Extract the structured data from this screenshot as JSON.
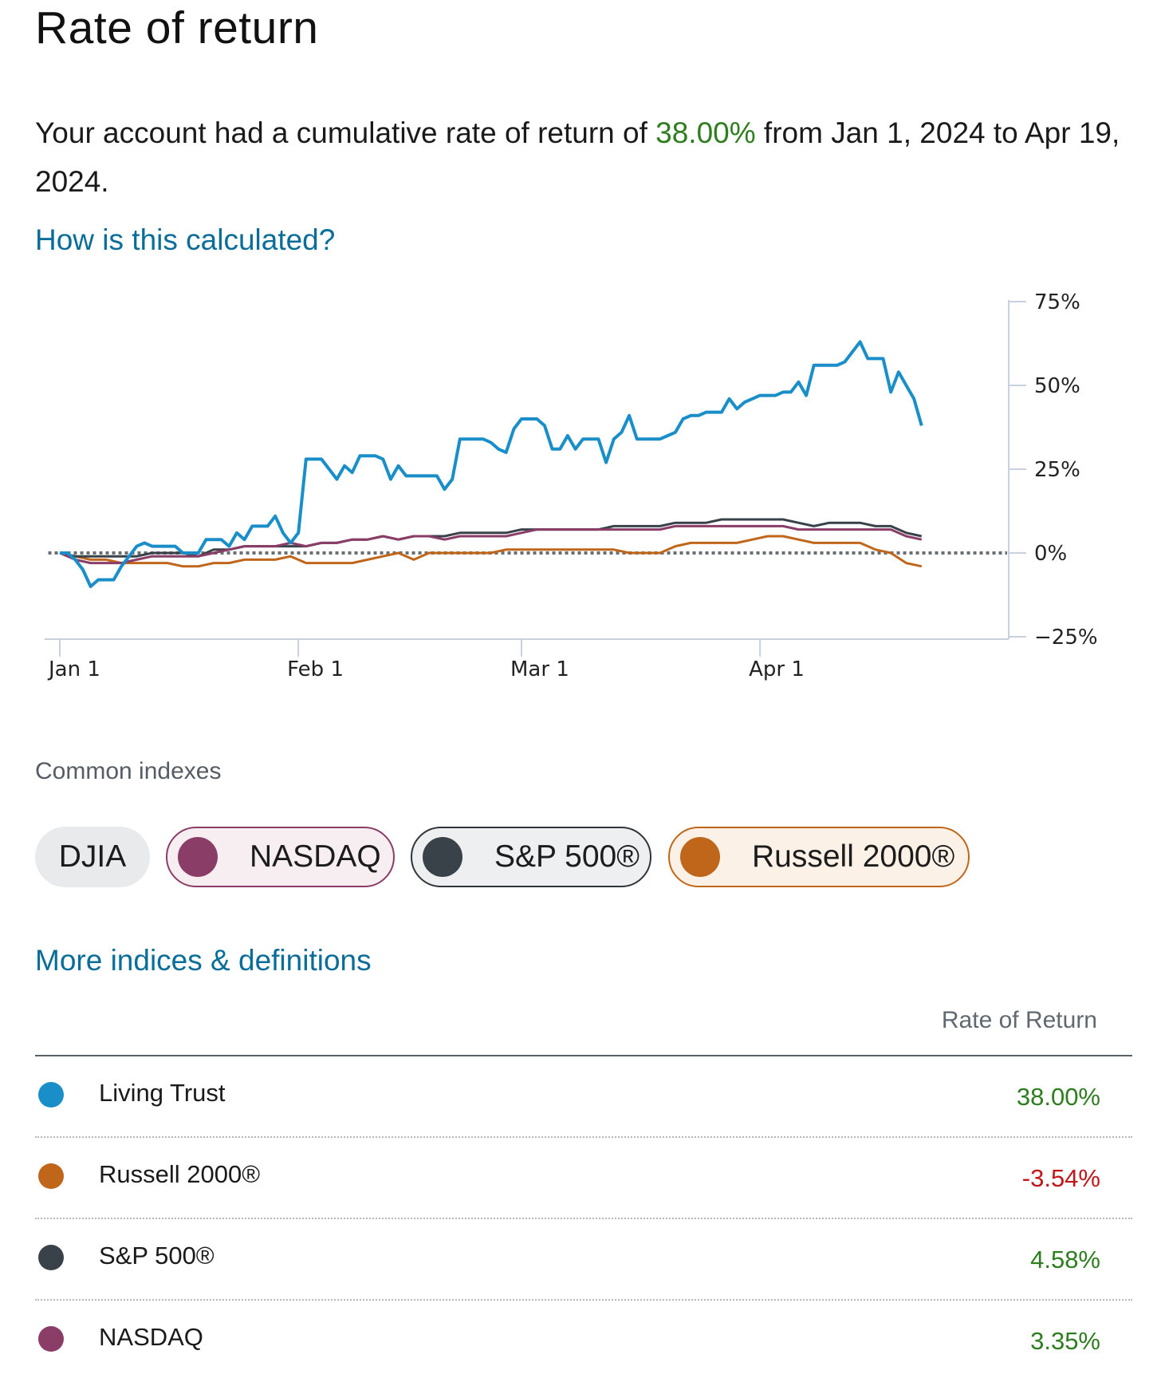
{
  "page": {
    "title": "Rate of return",
    "summary": {
      "prefix": "Your account had a cumulative rate of return of ",
      "return_value": "38.00%",
      "suffix": " from Jan 1, 2024 to Apr 19, 2024."
    },
    "calc_link": "How is this calculated?",
    "section_label": "Common indexes",
    "more_link": "More indices & definitions",
    "table_header": "Rate of Return"
  },
  "index_pills": [
    {
      "label": "DJIA",
      "color": null,
      "selected": false
    },
    {
      "label": "NASDAQ",
      "color": "#8a3d66",
      "selected": true
    },
    {
      "label": "S&P 500®",
      "color": "#3a4249",
      "selected": true
    },
    {
      "label": "Russell 2000®",
      "color": "#c0661a",
      "selected": true
    }
  ],
  "table_rows": [
    {
      "name": "Living Trust",
      "value": "38.00%",
      "color": "#1a8ec9",
      "sign": "positive"
    },
    {
      "name": "Russell 2000®",
      "value": "-3.54%",
      "color": "#c0661a",
      "sign": "negative"
    },
    {
      "name": "S&P 500®",
      "value": "4.58%",
      "color": "#3a4249",
      "sign": "positive"
    },
    {
      "name": "NASDAQ",
      "value": "3.35%",
      "color": "#8a3d66",
      "sign": "positive"
    }
  ],
  "chart_data": {
    "type": "line",
    "x_ticks": [
      {
        "label": "Jan 1",
        "day": 0
      },
      {
        "label": "Feb 1",
        "day": 31
      },
      {
        "label": "Mar 1",
        "day": 60
      },
      {
        "label": "Apr 1",
        "day": 91
      }
    ],
    "x_range_days": [
      -2,
      110
    ],
    "y_ticks": [
      {
        "label": "75%",
        "value": 75
      },
      {
        "label": "50%",
        "value": 50
      },
      {
        "label": "25%",
        "value": 25
      },
      {
        "label": "0%",
        "value": 0
      },
      {
        "label": "−25%",
        "value": -25
      }
    ],
    "ylim": [
      -25,
      75
    ],
    "zero_line": true,
    "series": [
      {
        "name": "Living Trust",
        "color": "#1a8ec9",
        "points": [
          [
            0,
            0
          ],
          [
            1,
            0
          ],
          [
            2,
            -2
          ],
          [
            3,
            -5
          ],
          [
            4,
            -10
          ],
          [
            5,
            -8
          ],
          [
            6,
            -8
          ],
          [
            7,
            -8
          ],
          [
            8,
            -4
          ],
          [
            9,
            -1
          ],
          [
            10,
            2
          ],
          [
            11,
            3
          ],
          [
            12,
            2
          ],
          [
            13,
            2
          ],
          [
            14,
            2
          ],
          [
            15,
            2
          ],
          [
            16,
            0
          ],
          [
            17,
            0
          ],
          [
            18,
            0
          ],
          [
            19,
            4
          ],
          [
            20,
            4
          ],
          [
            21,
            4
          ],
          [
            22,
            2
          ],
          [
            23,
            6
          ],
          [
            24,
            4
          ],
          [
            25,
            8
          ],
          [
            26,
            8
          ],
          [
            27,
            8
          ],
          [
            28,
            11
          ],
          [
            29,
            6
          ],
          [
            30,
            3
          ],
          [
            31,
            6
          ],
          [
            32,
            28
          ],
          [
            33,
            28
          ],
          [
            34,
            28
          ],
          [
            35,
            25
          ],
          [
            36,
            22
          ],
          [
            37,
            26
          ],
          [
            38,
            24
          ],
          [
            39,
            29
          ],
          [
            40,
            29
          ],
          [
            41,
            29
          ],
          [
            42,
            28
          ],
          [
            43,
            22
          ],
          [
            44,
            26
          ],
          [
            45,
            23
          ],
          [
            46,
            23
          ],
          [
            47,
            23
          ],
          [
            48,
            23
          ],
          [
            49,
            23
          ],
          [
            50,
            19
          ],
          [
            51,
            22
          ],
          [
            52,
            34
          ],
          [
            53,
            34
          ],
          [
            54,
            34
          ],
          [
            55,
            34
          ],
          [
            56,
            33
          ],
          [
            57,
            31
          ],
          [
            58,
            30
          ],
          [
            59,
            37
          ],
          [
            60,
            40
          ],
          [
            61,
            40
          ],
          [
            62,
            40
          ],
          [
            63,
            38
          ],
          [
            64,
            31
          ],
          [
            65,
            31
          ],
          [
            66,
            35
          ],
          [
            67,
            31
          ],
          [
            68,
            34
          ],
          [
            69,
            34
          ],
          [
            70,
            34
          ],
          [
            71,
            27
          ],
          [
            72,
            34
          ],
          [
            73,
            36
          ],
          [
            74,
            41
          ],
          [
            75,
            34
          ],
          [
            76,
            34
          ],
          [
            77,
            34
          ],
          [
            78,
            34
          ],
          [
            79,
            35
          ],
          [
            80,
            36
          ],
          [
            81,
            40
          ],
          [
            82,
            41
          ],
          [
            83,
            41
          ],
          [
            84,
            42
          ],
          [
            85,
            42
          ],
          [
            86,
            42
          ],
          [
            87,
            46
          ],
          [
            88,
            43
          ],
          [
            89,
            45
          ],
          [
            90,
            46
          ],
          [
            91,
            47
          ],
          [
            92,
            47
          ],
          [
            93,
            47
          ],
          [
            94,
            48
          ],
          [
            95,
            48
          ],
          [
            96,
            51
          ],
          [
            97,
            47
          ],
          [
            98,
            56
          ],
          [
            99,
            56
          ],
          [
            100,
            56
          ],
          [
            101,
            56
          ],
          [
            102,
            57
          ],
          [
            103,
            60
          ],
          [
            104,
            63
          ],
          [
            105,
            58
          ],
          [
            106,
            58
          ],
          [
            107,
            58
          ],
          [
            108,
            48
          ],
          [
            109,
            54
          ],
          [
            110,
            50
          ],
          [
            111,
            46
          ],
          [
            112,
            38
          ]
        ]
      },
      {
        "name": "S&P 500®",
        "color": "#3a4249",
        "points": [
          [
            0,
            0
          ],
          [
            2,
            -1
          ],
          [
            4,
            -1
          ],
          [
            6,
            -1
          ],
          [
            8,
            -1
          ],
          [
            10,
            -1
          ],
          [
            12,
            0
          ],
          [
            14,
            0
          ],
          [
            16,
            0
          ],
          [
            18,
            -1
          ],
          [
            20,
            1
          ],
          [
            22,
            1
          ],
          [
            24,
            2
          ],
          [
            26,
            2
          ],
          [
            28,
            2
          ],
          [
            30,
            2
          ],
          [
            32,
            2
          ],
          [
            34,
            3
          ],
          [
            36,
            3
          ],
          [
            38,
            4
          ],
          [
            40,
            4
          ],
          [
            42,
            5
          ],
          [
            44,
            4
          ],
          [
            46,
            5
          ],
          [
            48,
            5
          ],
          [
            50,
            5
          ],
          [
            52,
            6
          ],
          [
            54,
            6
          ],
          [
            56,
            6
          ],
          [
            58,
            6
          ],
          [
            60,
            7
          ],
          [
            62,
            7
          ],
          [
            64,
            7
          ],
          [
            66,
            7
          ],
          [
            68,
            7
          ],
          [
            70,
            7
          ],
          [
            72,
            8
          ],
          [
            74,
            8
          ],
          [
            76,
            8
          ],
          [
            78,
            8
          ],
          [
            80,
            9
          ],
          [
            82,
            9
          ],
          [
            84,
            9
          ],
          [
            86,
            10
          ],
          [
            88,
            10
          ],
          [
            90,
            10
          ],
          [
            92,
            10
          ],
          [
            94,
            10
          ],
          [
            96,
            9
          ],
          [
            98,
            8
          ],
          [
            100,
            9
          ],
          [
            102,
            9
          ],
          [
            104,
            9
          ],
          [
            106,
            8
          ],
          [
            108,
            8
          ],
          [
            110,
            6
          ],
          [
            112,
            5
          ]
        ]
      },
      {
        "name": "NASDAQ",
        "color": "#8a3d66",
        "points": [
          [
            0,
            0
          ],
          [
            2,
            -2
          ],
          [
            4,
            -3
          ],
          [
            6,
            -3
          ],
          [
            8,
            -3
          ],
          [
            10,
            -2
          ],
          [
            12,
            -1
          ],
          [
            14,
            -1
          ],
          [
            16,
            -1
          ],
          [
            18,
            -1
          ],
          [
            20,
            0
          ],
          [
            22,
            1
          ],
          [
            24,
            2
          ],
          [
            26,
            2
          ],
          [
            28,
            2
          ],
          [
            30,
            3
          ],
          [
            32,
            2
          ],
          [
            34,
            3
          ],
          [
            36,
            3
          ],
          [
            38,
            4
          ],
          [
            40,
            4
          ],
          [
            42,
            5
          ],
          [
            44,
            4
          ],
          [
            46,
            5
          ],
          [
            48,
            5
          ],
          [
            50,
            4
          ],
          [
            52,
            5
          ],
          [
            54,
            5
          ],
          [
            56,
            5
          ],
          [
            58,
            5
          ],
          [
            60,
            6
          ],
          [
            62,
            7
          ],
          [
            64,
            7
          ],
          [
            66,
            7
          ],
          [
            68,
            7
          ],
          [
            70,
            7
          ],
          [
            72,
            7
          ],
          [
            74,
            7
          ],
          [
            76,
            7
          ],
          [
            78,
            7
          ],
          [
            80,
            8
          ],
          [
            82,
            8
          ],
          [
            84,
            8
          ],
          [
            86,
            8
          ],
          [
            88,
            8
          ],
          [
            90,
            8
          ],
          [
            92,
            8
          ],
          [
            94,
            8
          ],
          [
            96,
            7
          ],
          [
            98,
            7
          ],
          [
            100,
            7
          ],
          [
            102,
            7
          ],
          [
            104,
            7
          ],
          [
            106,
            7
          ],
          [
            108,
            7
          ],
          [
            110,
            5
          ],
          [
            112,
            4
          ]
        ]
      },
      {
        "name": "Russell 2000®",
        "color": "#c0661a",
        "points": [
          [
            0,
            0
          ],
          [
            2,
            -1
          ],
          [
            4,
            -2
          ],
          [
            6,
            -2
          ],
          [
            8,
            -3
          ],
          [
            10,
            -3
          ],
          [
            12,
            -3
          ],
          [
            14,
            -3
          ],
          [
            16,
            -4
          ],
          [
            18,
            -4
          ],
          [
            20,
            -3
          ],
          [
            22,
            -3
          ],
          [
            24,
            -2
          ],
          [
            26,
            -2
          ],
          [
            28,
            -2
          ],
          [
            30,
            -1
          ],
          [
            32,
            -3
          ],
          [
            34,
            -3
          ],
          [
            36,
            -3
          ],
          [
            38,
            -3
          ],
          [
            40,
            -2
          ],
          [
            42,
            -1
          ],
          [
            44,
            0
          ],
          [
            46,
            -2
          ],
          [
            48,
            0
          ],
          [
            50,
            0
          ],
          [
            52,
            0
          ],
          [
            54,
            0
          ],
          [
            56,
            0
          ],
          [
            58,
            1
          ],
          [
            60,
            1
          ],
          [
            62,
            1
          ],
          [
            64,
            1
          ],
          [
            66,
            1
          ],
          [
            68,
            1
          ],
          [
            70,
            1
          ],
          [
            72,
            1
          ],
          [
            74,
            0
          ],
          [
            76,
            0
          ],
          [
            78,
            0
          ],
          [
            80,
            2
          ],
          [
            82,
            3
          ],
          [
            84,
            3
          ],
          [
            86,
            3
          ],
          [
            88,
            3
          ],
          [
            90,
            4
          ],
          [
            92,
            5
          ],
          [
            94,
            5
          ],
          [
            96,
            4
          ],
          [
            98,
            3
          ],
          [
            100,
            3
          ],
          [
            102,
            3
          ],
          [
            104,
            3
          ],
          [
            106,
            1
          ],
          [
            108,
            0
          ],
          [
            110,
            -3
          ],
          [
            112,
            -4
          ]
        ]
      }
    ]
  }
}
